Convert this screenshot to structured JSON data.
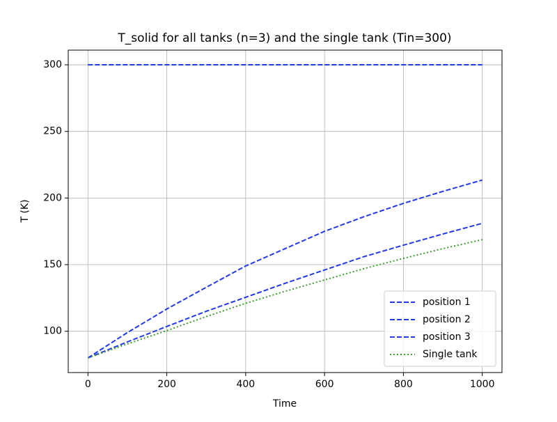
{
  "chart_data": {
    "type": "line",
    "title": "T_solid for all tanks (n=3) and the single tank (Tin=300)",
    "xlabel": "Time",
    "ylabel": "T (K)",
    "x": [
      0,
      100,
      200,
      300,
      400,
      500,
      600,
      700,
      800,
      900,
      1000
    ],
    "series": [
      {
        "name": "position 1",
        "color": "#2239e6",
        "linestyle": "dashed",
        "values": [
          300,
          300,
          300,
          300,
          300,
          300,
          300,
          300,
          300,
          300,
          300
        ]
      },
      {
        "name": "position 2",
        "color": "#2239e6",
        "linestyle": "dashed",
        "values": [
          80,
          99,
          116.7,
          133,
          149,
          162,
          175,
          186,
          196,
          205,
          213.5
        ]
      },
      {
        "name": "position 3",
        "color": "#2239e6",
        "linestyle": "dashed",
        "values": [
          80,
          92,
          103.6,
          115,
          125.5,
          136,
          146,
          156,
          164.6,
          173,
          181
        ]
      },
      {
        "name": "Single tank",
        "color": "#3b9a2e",
        "linestyle": "dotted",
        "values": [
          80,
          90.5,
          100.5,
          111,
          121,
          130,
          138.5,
          147,
          154.7,
          162,
          168.8
        ]
      }
    ],
    "xlim": [
      -50,
      1050
    ],
    "ylim": [
      69,
      311
    ],
    "xticks": [
      0,
      200,
      400,
      600,
      800,
      1000
    ],
    "yticks": [
      100,
      150,
      200,
      250,
      300
    ],
    "grid": true,
    "legend": "lower right"
  }
}
